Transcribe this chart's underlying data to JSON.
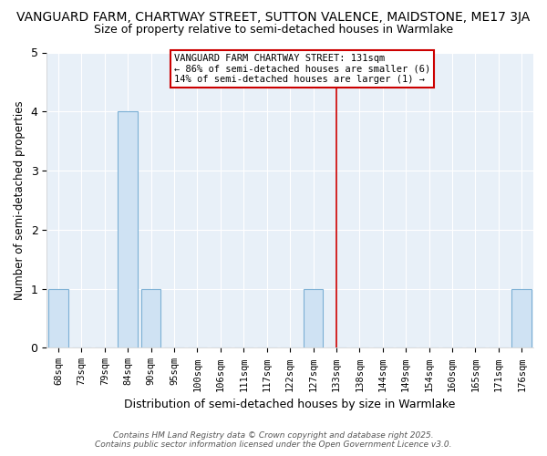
{
  "title_line1": "VANGUARD FARM, CHARTWAY STREET, SUTTON VALENCE, MAIDSTONE, ME17 3JA",
  "title_line2": "Size of property relative to semi-detached houses in Warmlake",
  "xlabel": "Distribution of semi-detached houses by size in Warmlake",
  "ylabel": "Number of semi-detached properties",
  "categories": [
    "68sqm",
    "73sqm",
    "79sqm",
    "84sqm",
    "90sqm",
    "95sqm",
    "100sqm",
    "106sqm",
    "111sqm",
    "117sqm",
    "122sqm",
    "127sqm",
    "133sqm",
    "138sqm",
    "144sqm",
    "149sqm",
    "154sqm",
    "160sqm",
    "165sqm",
    "171sqm",
    "176sqm"
  ],
  "values": [
    1,
    0,
    0,
    4,
    1,
    0,
    0,
    0,
    0,
    0,
    0,
    1,
    0,
    0,
    0,
    0,
    0,
    0,
    0,
    0,
    1
  ],
  "bar_color": "#cfe2f3",
  "bar_edge_color": "#7bafd4",
  "vline_index": 12,
  "vline_color": "#cc0000",
  "ylim": [
    0,
    5
  ],
  "annotation_title": "VANGUARD FARM CHARTWAY STREET: 131sqm",
  "annotation_line2": "← 86% of semi-detached houses are smaller (6)",
  "annotation_line3": "14% of semi-detached houses are larger (1) →",
  "annotation_box_color": "#cc0000",
  "annotation_text_color": "#000000",
  "annotation_bg_color": "#ffffff",
  "plot_bg_color": "#e8f0f8",
  "fig_bg_color": "#ffffff",
  "footer_line1": "Contains HM Land Registry data © Crown copyright and database right 2025.",
  "footer_line2": "Contains public sector information licensed under the Open Government Licence v3.0.",
  "title_fontsize": 10,
  "subtitle_fontsize": 9,
  "ytick_values": [
    0,
    1,
    2,
    3,
    4,
    5
  ],
  "grid_color": "#ffffff"
}
